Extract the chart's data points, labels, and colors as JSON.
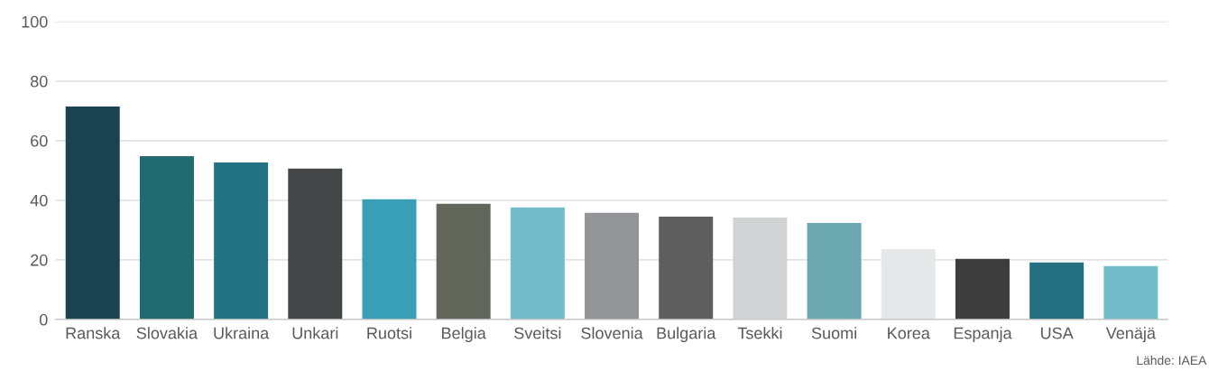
{
  "chart_data": {
    "type": "bar",
    "categories": [
      "Ranska",
      "Slovakia",
      "Ukraina",
      "Unkari",
      "Ruotsi",
      "Belgia",
      "Sveitsi",
      "Slovenia",
      "Bulgaria",
      "Tsekki",
      "Suomi",
      "Korea",
      "Espanja",
      "USA",
      "Venäjä"
    ],
    "values": [
      71.5,
      54.8,
      52.7,
      50.6,
      40.3,
      38.8,
      37.6,
      35.8,
      34.5,
      34.2,
      32.4,
      23.6,
      20.3,
      19.1,
      17.9
    ],
    "colors": [
      "#1a424f",
      "#1f6b6f",
      "#247384",
      "#444547",
      "#389fb6",
      "#63665a",
      "#72bdc9",
      "#939497",
      "#5e5e5e",
      "#d1d2d4",
      "#6ba8b0",
      "#e6e7e9",
      "#3d3d3d",
      "#237083",
      "#72bdc9"
    ],
    "ylim": [
      0,
      100
    ],
    "yticks": [
      0,
      20,
      40,
      60,
      80,
      100
    ],
    "grid": "y",
    "annotations": [
      "Lähde: IAEA"
    ]
  }
}
